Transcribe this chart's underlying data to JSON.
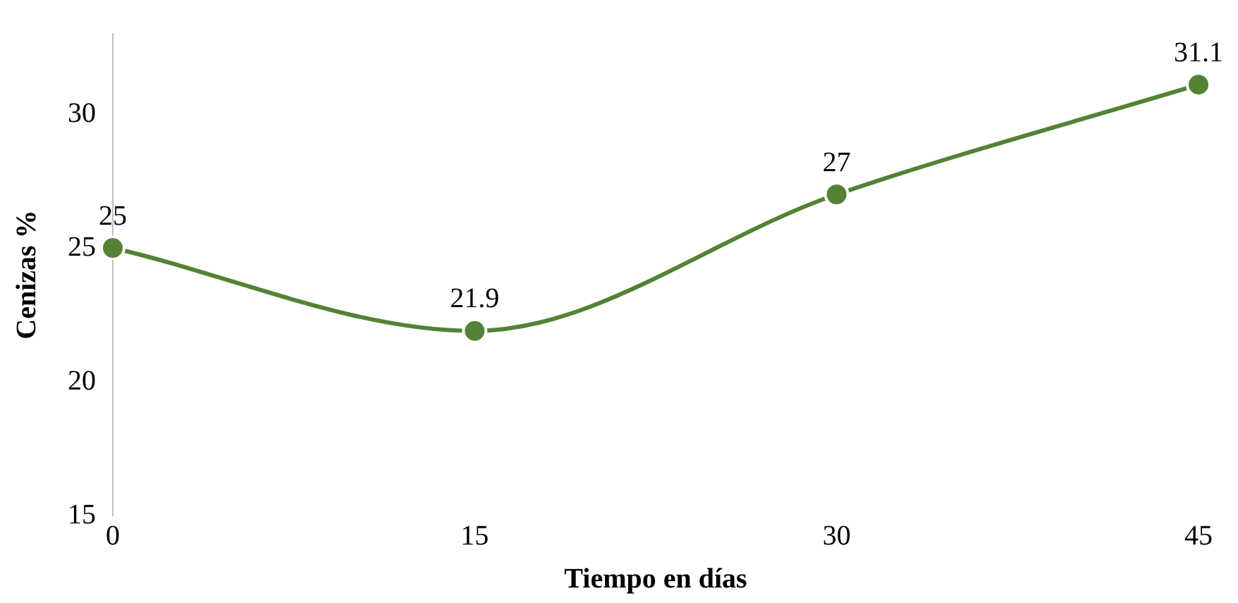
{
  "chart_data": {
    "type": "line",
    "xlabel": "Tiempo en días",
    "ylabel": "Cenizas %",
    "x": [
      0,
      15,
      30,
      45
    ],
    "series": [
      {
        "color": "#548235",
        "values": [
          25,
          21.9,
          27,
          31.1
        ]
      }
    ],
    "xlim": [
      0,
      45
    ],
    "xticks": [
      0,
      15,
      30,
      45
    ],
    "ylim": [
      15,
      33
    ],
    "yticks": [
      15,
      20,
      25,
      30
    ],
    "grid": false,
    "legend": false,
    "marker": "circle",
    "line_style": "solid",
    "data_labels": true
  }
}
